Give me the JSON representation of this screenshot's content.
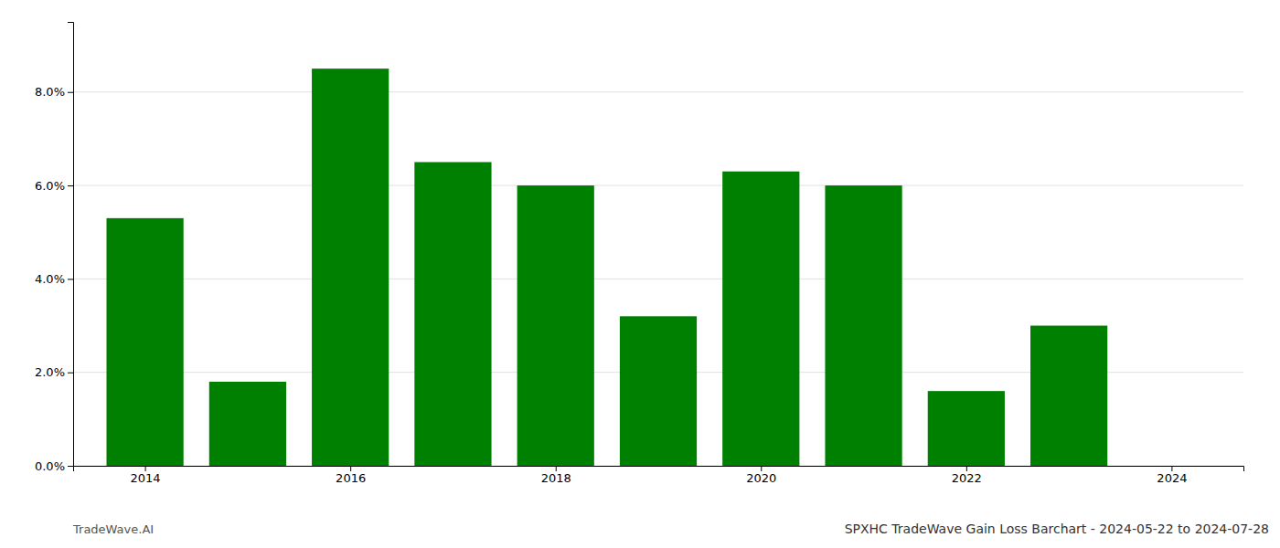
{
  "chart_data": {
    "type": "bar",
    "title": "SPXHC TradeWave Gain Loss Barchart - 2024-05-22 to 2024-07-28",
    "annotations": [
      "TradeWave.AI"
    ],
    "x": [
      2014,
      2015,
      2016,
      2017,
      2018,
      2019,
      2020,
      2021,
      2022,
      2023
    ],
    "values": [
      0.053,
      0.018,
      0.085,
      0.065,
      0.06,
      0.032,
      0.063,
      0.06,
      0.016,
      0.03
    ],
    "color": "#008000",
    "xlim": [
      2013.3,
      2024.7
    ],
    "xticks": [
      2014,
      2016,
      2018,
      2020,
      2022,
      2024
    ],
    "ylim": [
      0,
      0.095
    ],
    "yticks": [
      {
        "value": 0.0,
        "label": "0.0%"
      },
      {
        "value": 0.02,
        "label": "2.0%"
      },
      {
        "value": 0.04,
        "label": "4.0%"
      },
      {
        "value": 0.06,
        "label": "6.0%"
      },
      {
        "value": 0.08,
        "label": "8.0%"
      }
    ],
    "grid": true
  }
}
